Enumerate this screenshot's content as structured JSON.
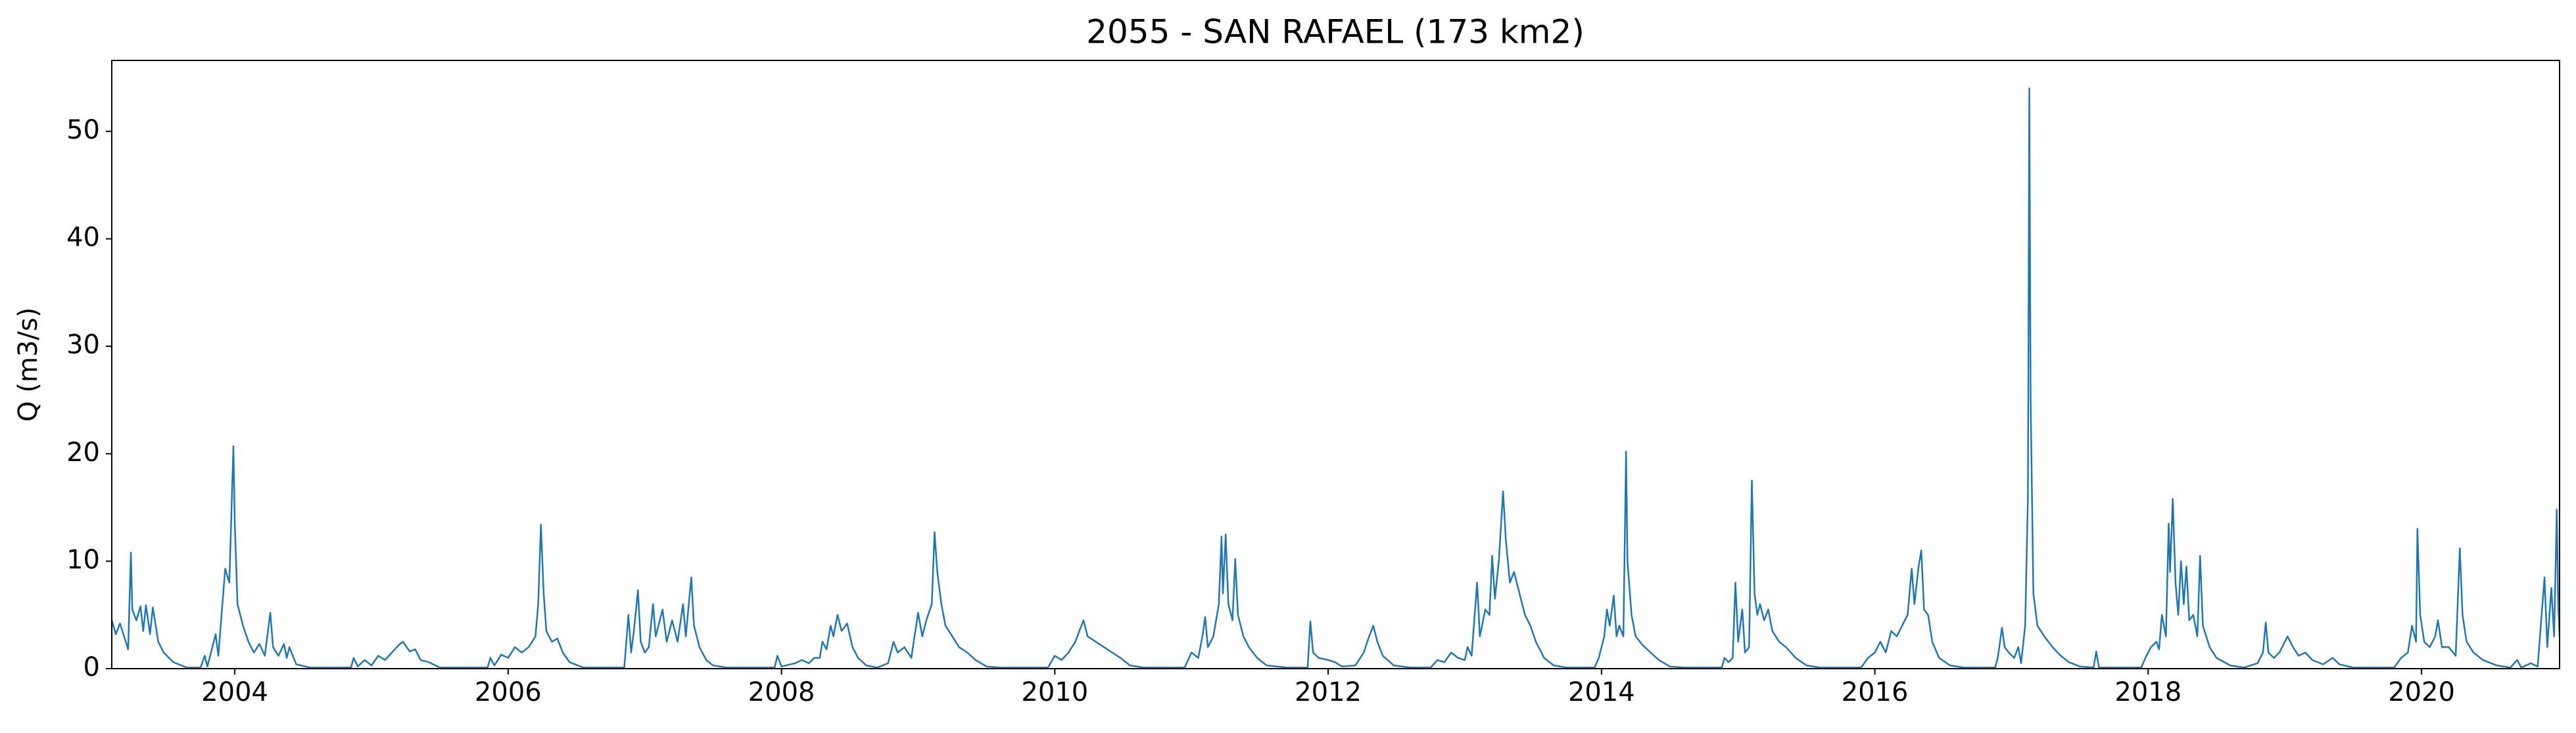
{
  "chart_data": {
    "type": "line",
    "title": "2055 - SAN RAFAEL (173 km2)",
    "y_label": "Q (m3/s)",
    "color": "#1f77b4",
    "xlim": [
      2003.1,
      2021.01
    ],
    "ylim": [
      0,
      56.6
    ],
    "xticks": [
      2004,
      2006,
      2008,
      2010,
      2012,
      2014,
      2016,
      2018,
      2020
    ],
    "yticks": [
      0,
      10,
      20,
      30,
      40,
      50
    ],
    "x": [
      2003.1,
      2003.13,
      2003.16,
      2003.19,
      2003.22,
      2003.24,
      2003.25,
      2003.28,
      2003.31,
      2003.33,
      2003.35,
      2003.38,
      2003.4,
      2003.44,
      2003.48,
      2003.55,
      2003.65,
      2003.75,
      2003.78,
      2003.8,
      2003.86,
      2003.88,
      2003.93,
      2003.96,
      2003.99,
      2004.0,
      2004.02,
      2004.06,
      2004.1,
      2004.14,
      2004.18,
      2004.22,
      2004.26,
      2004.28,
      2004.32,
      2004.36,
      2004.38,
      2004.4,
      2004.45,
      2004.55,
      2004.85,
      2004.87,
      2004.9,
      2004.95,
      2005.0,
      2005.05,
      2005.1,
      2005.15,
      2005.2,
      2005.23,
      2005.28,
      2005.32,
      2005.36,
      2005.42,
      2005.5,
      2005.85,
      2005.87,
      2005.9,
      2005.95,
      2006.0,
      2006.05,
      2006.1,
      2006.15,
      2006.2,
      2006.22,
      2006.24,
      2006.26,
      2006.28,
      2006.32,
      2006.36,
      2006.4,
      2006.45,
      2006.55,
      2006.85,
      2006.88,
      2006.9,
      2006.92,
      2006.95,
      2006.97,
      2007.0,
      2007.03,
      2007.06,
      2007.08,
      2007.1,
      2007.13,
      2007.16,
      2007.2,
      2007.24,
      2007.28,
      2007.3,
      2007.34,
      2007.36,
      2007.4,
      2007.45,
      2007.5,
      2007.6,
      2007.95,
      2007.97,
      2008.0,
      2008.1,
      2008.15,
      2008.2,
      2008.24,
      2008.28,
      2008.3,
      2008.33,
      2008.36,
      2008.38,
      2008.41,
      2008.44,
      2008.48,
      2008.52,
      2008.56,
      2008.62,
      2008.7,
      2008.78,
      2008.82,
      2008.85,
      2008.9,
      2008.95,
      2009.0,
      2009.03,
      2009.06,
      2009.1,
      2009.12,
      2009.14,
      2009.17,
      2009.2,
      2009.25,
      2009.3,
      2009.36,
      2009.42,
      2009.5,
      2009.6,
      2009.95,
      2010.0,
      2010.05,
      2010.1,
      2010.15,
      2010.18,
      2010.21,
      2010.24,
      2010.3,
      2010.36,
      2010.42,
      2010.48,
      2010.55,
      2010.65,
      2010.95,
      2011.0,
      2011.05,
      2011.08,
      2011.1,
      2011.12,
      2011.16,
      2011.2,
      2011.22,
      2011.23,
      2011.25,
      2011.27,
      2011.3,
      2011.32,
      2011.34,
      2011.38,
      2011.42,
      2011.48,
      2011.55,
      2011.7,
      2011.85,
      2011.87,
      2011.89,
      2011.93,
      2012.0,
      2012.05,
      2012.1,
      2012.2,
      2012.26,
      2012.3,
      2012.33,
      2012.36,
      2012.4,
      2012.48,
      2012.6,
      2012.75,
      2012.8,
      2012.85,
      2012.9,
      2012.95,
      2013.0,
      2013.02,
      2013.05,
      2013.09,
      2013.11,
      2013.15,
      2013.18,
      2013.2,
      2013.22,
      2013.25,
      2013.28,
      2013.3,
      2013.33,
      2013.36,
      2013.4,
      2013.44,
      2013.48,
      2013.52,
      2013.58,
      2013.65,
      2013.75,
      2013.95,
      2013.98,
      2014.02,
      2014.04,
      2014.06,
      2014.09,
      2014.11,
      2014.13,
      2014.16,
      2014.18,
      2014.19,
      2014.22,
      2014.25,
      2014.3,
      2014.36,
      2014.42,
      2014.5,
      2014.6,
      2014.88,
      2014.9,
      2014.93,
      2014.96,
      2014.98,
      2015.0,
      2015.03,
      2015.05,
      2015.08,
      2015.1,
      2015.12,
      2015.14,
      2015.16,
      2015.19,
      2015.22,
      2015.25,
      2015.3,
      2015.35,
      2015.42,
      2015.5,
      2015.6,
      2015.9,
      2015.95,
      2016.0,
      2016.04,
      2016.08,
      2016.12,
      2016.16,
      2016.2,
      2016.24,
      2016.27,
      2016.29,
      2016.32,
      2016.34,
      2016.36,
      2016.39,
      2016.42,
      2016.47,
      2016.55,
      2016.65,
      2016.88,
      2016.9,
      2016.93,
      2016.95,
      2016.98,
      2017.02,
      2017.05,
      2017.07,
      2017.1,
      2017.12,
      2017.13,
      2017.14,
      2017.16,
      2017.19,
      2017.24,
      2017.3,
      2017.36,
      2017.42,
      2017.5,
      2017.6,
      2017.62,
      2017.64,
      2017.95,
      2017.98,
      2018.02,
      2018.06,
      2018.08,
      2018.1,
      2018.13,
      2018.15,
      2018.16,
      2018.18,
      2018.2,
      2018.22,
      2018.24,
      2018.26,
      2018.28,
      2018.3,
      2018.33,
      2018.36,
      2018.38,
      2018.4,
      2018.45,
      2018.5,
      2018.6,
      2018.7,
      2018.8,
      2018.84,
      2018.86,
      2018.88,
      2018.92,
      2018.96,
      2019.0,
      2019.02,
      2019.06,
      2019.1,
      2019.15,
      2019.2,
      2019.28,
      2019.35,
      2019.4,
      2019.5,
      2019.8,
      2019.85,
      2019.9,
      2019.93,
      2019.96,
      2019.97,
      2019.99,
      2020.02,
      2020.06,
      2020.1,
      2020.12,
      2020.15,
      2020.2,
      2020.25,
      2020.28,
      2020.3,
      2020.33,
      2020.38,
      2020.45,
      2020.55,
      2020.65,
      2020.7,
      2020.73,
      2020.8,
      2020.85,
      2020.9,
      2020.92,
      2020.95,
      2020.97,
      2020.99,
      2021.0,
      2021.01
    ],
    "values": [
      4.5,
      3.2,
      4.2,
      3,
      1.8,
      10.8,
      5.5,
      4.5,
      5.8,
      3.5,
      5.9,
      3.2,
      5.7,
      2.5,
      1.5,
      0.6,
      0.1,
      0.1,
      1.2,
      0.2,
      3.2,
      1.2,
      9.3,
      8,
      20.7,
      13.5,
      6,
      4,
      2.5,
      1.5,
      2.3,
      1.2,
      5.2,
      2,
      1.2,
      2.3,
      1,
      2,
      0.4,
      0.1,
      0.1,
      1,
      0.2,
      0.8,
      0.3,
      1.2,
      0.8,
      1.5,
      2.2,
      2.5,
      1.6,
      1.8,
      0.8,
      0.6,
      0.1,
      0.1,
      1,
      0.3,
      1.3,
      1,
      2,
      1.5,
      2,
      3,
      6,
      13.4,
      7,
      3.5,
      2.5,
      2.8,
      1.5,
      0.6,
      0.1,
      0.1,
      5,
      1.5,
      3.5,
      7.3,
      2.5,
      1.5,
      2,
      6,
      3,
      4,
      5.5,
      2.5,
      4.5,
      2.5,
      6,
      3,
      8.5,
      4,
      2,
      0.8,
      0.3,
      0.1,
      0.1,
      1.2,
      0.2,
      0.5,
      0.8,
      0.5,
      1,
      1,
      2.5,
      1.8,
      4,
      3,
      5,
      3.5,
      4.2,
      2,
      1,
      0.3,
      0.1,
      0.5,
      2.5,
      1.5,
      2,
      1,
      5.2,
      3,
      4.5,
      6,
      12.7,
      9,
      6,
      4,
      3,
      2,
      1.5,
      0.8,
      0.2,
      0.1,
      0.1,
      1.2,
      0.8,
      1.5,
      2.5,
      3.5,
      4.5,
      3,
      2.5,
      2,
      1.5,
      1,
      0.3,
      0.1,
      0.1,
      1.5,
      1,
      3,
      4.8,
      2,
      3,
      6,
      12.3,
      7,
      12.5,
      6,
      4.5,
      10.2,
      5,
      3,
      2,
      1,
      0.3,
      0.1,
      0.1,
      4.4,
      1.5,
      1,
      0.8,
      0.6,
      0.2,
      0.3,
      1.5,
      3,
      4,
      2.5,
      1.2,
      0.3,
      0.1,
      0.1,
      0.8,
      0.6,
      1.5,
      1,
      0.8,
      2,
      1.2,
      8,
      3,
      5.5,
      5,
      10.5,
      6.5,
      10.2,
      16.5,
      12,
      8,
      9,
      7,
      5,
      4,
      2.5,
      1,
      0.3,
      0.1,
      0.1,
      1,
      3,
      5.5,
      4,
      6.8,
      3,
      4,
      3,
      20.2,
      10,
      5,
      3,
      2.2,
      1.5,
      0.8,
      0.2,
      0.1,
      0.1,
      1,
      0.6,
      1,
      8,
      2.5,
      5.5,
      1.5,
      2,
      17.5,
      7,
      5,
      6,
      4.5,
      5.5,
      3.5,
      2.5,
      2,
      1,
      0.3,
      0.1,
      0.1,
      1,
      1.5,
      2.5,
      1.5,
      3.5,
      3,
      4,
      5,
      9.3,
      6,
      9.5,
      11,
      5.5,
      5,
      2.5,
      1,
      0.3,
      0.1,
      0.1,
      1,
      3.8,
      2,
      1.5,
      1,
      2,
      0.5,
      4,
      16,
      54,
      25,
      7,
      4,
      3,
      2,
      1.2,
      0.6,
      0.2,
      0.1,
      1.6,
      0.1,
      0.1,
      1,
      2,
      2.5,
      1.8,
      5,
      3,
      13.5,
      9,
      15.8,
      8,
      5,
      10,
      6,
      9.5,
      4.5,
      5,
      3,
      10.5,
      4,
      2,
      1,
      0.3,
      0.1,
      0.5,
      1.5,
      4.3,
      1.5,
      1,
      1.5,
      2.5,
      3,
      2,
      1.2,
      1.5,
      0.8,
      0.4,
      1,
      0.4,
      0.1,
      0.1,
      1,
      1.5,
      4,
      2.5,
      13,
      5,
      2.5,
      2,
      3,
      4.5,
      2,
      2,
      1.2,
      11.2,
      5,
      2.5,
      1.5,
      0.8,
      0.3,
      0.1,
      0.8,
      0.1,
      0.5,
      0.2,
      8.5,
      2,
      7.5,
      3,
      14.8,
      6,
      3
    ]
  }
}
